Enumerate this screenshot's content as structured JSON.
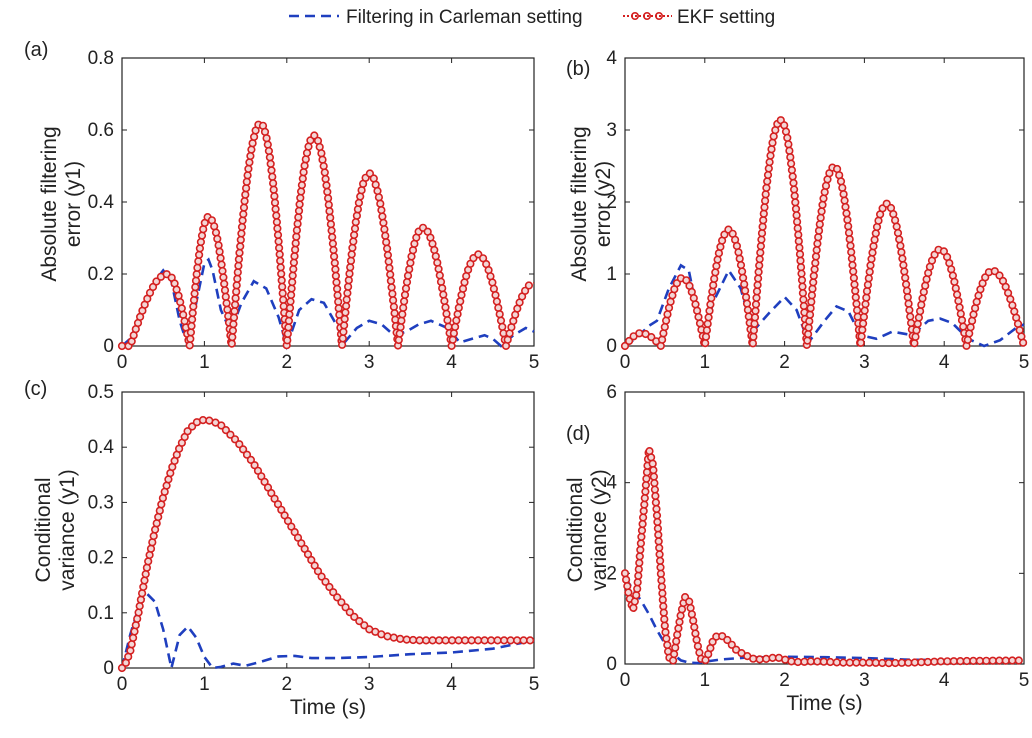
{
  "legend": {
    "position": "top-center",
    "entries": [
      {
        "label": "Filtering in Carleman setting",
        "color": "#1f3fbf",
        "style": "dashed"
      },
      {
        "label": "EKF setting",
        "color": "#d42020",
        "style": "dotted-circle-markers"
      }
    ]
  },
  "chart_data": [
    {
      "panel": "(a)",
      "type": "line",
      "xlabel": "",
      "ylabel": "Absolute filtering error (y1)",
      "xlim": [
        0,
        5
      ],
      "ylim": [
        0,
        0.8
      ],
      "xticks": [
        "0",
        "1",
        "2",
        "3",
        "4",
        "5"
      ],
      "yticks": [
        "0",
        "0.2",
        "0.4",
        "0.6",
        "0.8"
      ],
      "xtick_values": [
        0,
        1,
        2,
        3,
        4,
        5
      ],
      "ytick_values": [
        0,
        0.2,
        0.4,
        0.6,
        0.8
      ],
      "series": [
        {
          "name": "Filtering in Carleman setting",
          "x": [
            0,
            0.1,
            0.2,
            0.3,
            0.4,
            0.5,
            0.6,
            0.7,
            0.8,
            0.9,
            1.0,
            1.05,
            1.1,
            1.2,
            1.32,
            1.45,
            1.6,
            1.75,
            1.9,
            2.0,
            2.15,
            2.3,
            2.45,
            2.6,
            2.7,
            2.85,
            3.0,
            3.15,
            3.3,
            3.45,
            3.6,
            3.75,
            3.95,
            4.1,
            4.25,
            4.4,
            4.5,
            4.6,
            4.75,
            4.9,
            5.0
          ],
          "y": [
            0,
            0.02,
            0.07,
            0.13,
            0.18,
            0.21,
            0.18,
            0.07,
            0.0,
            0.12,
            0.23,
            0.24,
            0.21,
            0.1,
            0.04,
            0.12,
            0.18,
            0.16,
            0.08,
            0.0,
            0.1,
            0.13,
            0.12,
            0.06,
            0.01,
            0.05,
            0.07,
            0.06,
            0.03,
            0.04,
            0.06,
            0.07,
            0.05,
            0.01,
            0.02,
            0.03,
            0.02,
            0.0,
            0.03,
            0.05,
            0.04
          ]
        },
        {
          "name": "EKF setting",
          "peaks": [
            [
              0.55,
              0.2
            ],
            [
              1.05,
              0.36
            ],
            [
              1.68,
              0.62
            ],
            [
              2.33,
              0.585
            ],
            [
              3.0,
              0.48
            ],
            [
              3.65,
              0.33
            ],
            [
              4.32,
              0.255
            ],
            [
              5.0,
              0.175
            ]
          ],
          "zeros": [
            0.0,
            0.82,
            1.33,
            2.0,
            2.67,
            3.35,
            4.0,
            4.66
          ],
          "rise_start": 0.1
        }
      ]
    },
    {
      "panel": "(b)",
      "type": "line",
      "xlabel": "",
      "ylabel": "Absolute filtering error (y2)",
      "xlim": [
        0,
        5
      ],
      "ylim": [
        0,
        4
      ],
      "xticks": [
        "0",
        "1",
        "2",
        "3",
        "4",
        "5"
      ],
      "yticks": [
        "0",
        "1",
        "2",
        "3",
        "4"
      ],
      "xtick_values": [
        0,
        1,
        2,
        3,
        4,
        5
      ],
      "ytick_values": [
        0,
        1,
        2,
        3,
        4
      ],
      "series": [
        {
          "name": "Filtering in Carleman setting",
          "x": [
            0,
            0.15,
            0.3,
            0.4,
            0.55,
            0.7,
            0.8,
            0.9,
            1.0,
            1.1,
            1.3,
            1.45,
            1.6,
            1.8,
            2.0,
            2.15,
            2.3,
            2.5,
            2.65,
            2.8,
            2.95,
            3.15,
            3.35,
            3.6,
            3.8,
            3.95,
            4.1,
            4.3,
            4.5,
            4.7,
            4.9,
            5.0
          ],
          "y": [
            0,
            0.12,
            0.28,
            0.35,
            0.8,
            1.12,
            1.05,
            0.5,
            0.1,
            0.6,
            1.05,
            0.8,
            0.2,
            0.45,
            0.68,
            0.5,
            0.05,
            0.35,
            0.55,
            0.48,
            0.15,
            0.1,
            0.2,
            0.15,
            0.35,
            0.38,
            0.32,
            0.1,
            0.0,
            0.08,
            0.25,
            0.3
          ]
        },
        {
          "name": "EKF setting",
          "peaks": [
            [
              0.2,
              0.18
            ],
            [
              0.72,
              0.95
            ],
            [
              1.3,
              1.62
            ],
            [
              1.95,
              3.15
            ],
            [
              2.62,
              2.5
            ],
            [
              3.28,
              1.98
            ],
            [
              3.95,
              1.35
            ],
            [
              4.6,
              1.05
            ]
          ],
          "zeros": [
            0.0,
            0.45,
            1.0,
            1.6,
            2.28,
            2.95,
            3.62,
            4.28,
            5.0
          ],
          "rise_start": 0.0
        }
      ]
    },
    {
      "panel": "(c)",
      "type": "line",
      "xlabel": "Time (s)",
      "ylabel": "Conditional variance (y1)",
      "xlim": [
        0,
        5
      ],
      "ylim": [
        0,
        0.5
      ],
      "xticks": [
        "0",
        "1",
        "2",
        "3",
        "4",
        "5"
      ],
      "yticks": [
        "0",
        "0.1",
        "0.2",
        "0.3",
        "0.4",
        "0.5"
      ],
      "xtick_values": [
        0,
        1,
        2,
        3,
        4,
        5
      ],
      "ytick_values": [
        0,
        0.1,
        0.2,
        0.3,
        0.4,
        0.5
      ],
      "series": [
        {
          "name": "Filtering in Carleman setting",
          "x": [
            0,
            0.1,
            0.2,
            0.3,
            0.4,
            0.5,
            0.6,
            0.7,
            0.8,
            0.9,
            1.0,
            1.1,
            1.2,
            1.35,
            1.5,
            1.7,
            1.9,
            2.1,
            2.3,
            2.6,
            3.0,
            3.5,
            4.0,
            4.5,
            5.0
          ],
          "y": [
            0,
            0.06,
            0.11,
            0.135,
            0.12,
            0.07,
            0.0,
            0.06,
            0.075,
            0.055,
            0.02,
            0.0,
            0.002,
            0.008,
            0.004,
            0.012,
            0.021,
            0.022,
            0.018,
            0.018,
            0.02,
            0.025,
            0.028,
            0.035,
            0.05
          ]
        },
        {
          "name": "EKF setting",
          "x": [
            0,
            0.05,
            0.1,
            0.2,
            0.3,
            0.4,
            0.5,
            0.6,
            0.7,
            0.8,
            0.9,
            1.0,
            1.1,
            1.2,
            1.4,
            1.6,
            1.8,
            2.0,
            2.2,
            2.4,
            2.6,
            2.8,
            3.0,
            3.2,
            3.4,
            3.6,
            3.8,
            4.0,
            4.5,
            5.0
          ],
          "y": [
            0,
            0.01,
            0.03,
            0.1,
            0.18,
            0.25,
            0.31,
            0.36,
            0.4,
            0.43,
            0.445,
            0.45,
            0.447,
            0.44,
            0.41,
            0.37,
            0.32,
            0.27,
            0.22,
            0.17,
            0.13,
            0.095,
            0.07,
            0.058,
            0.052,
            0.05,
            0.05,
            0.05,
            0.05,
            0.05
          ]
        }
      ]
    },
    {
      "panel": "(d)",
      "type": "line",
      "xlabel": "Time (s)",
      "ylabel": "Conditional variance (y2)",
      "xlim": [
        0,
        5
      ],
      "ylim": [
        0,
        6
      ],
      "xticks": [
        "0",
        "1",
        "2",
        "3",
        "4",
        "5"
      ],
      "yticks": [
        "0",
        "2",
        "4",
        "6"
      ],
      "xtick_values": [
        0,
        1,
        2,
        3,
        4,
        5
      ],
      "ytick_values": [
        0,
        2,
        4,
        6
      ],
      "series": [
        {
          "name": "Filtering in Carleman setting",
          "x": [
            0,
            0.1,
            0.2,
            0.3,
            0.4,
            0.5,
            0.6,
            0.7,
            0.8,
            0.9,
            1.0,
            1.2,
            1.5,
            2.0,
            2.5,
            3.0,
            3.5,
            4.0,
            5.0
          ],
          "y": [
            1.9,
            1.65,
            1.4,
            1.1,
            0.75,
            0.45,
            0.22,
            0.08,
            0.03,
            0.02,
            0.05,
            0.1,
            0.14,
            0.16,
            0.15,
            0.13,
            0.1,
            0.08,
            0.06
          ]
        },
        {
          "name": "EKF setting",
          "x": [
            0,
            0.05,
            0.1,
            0.15,
            0.2,
            0.25,
            0.3,
            0.35,
            0.4,
            0.45,
            0.5,
            0.55,
            0.6,
            0.65,
            0.7,
            0.75,
            0.8,
            0.85,
            0.9,
            0.95,
            1.0,
            1.05,
            1.1,
            1.15,
            1.2,
            1.25,
            1.3,
            1.35,
            1.4,
            1.5,
            1.6,
            1.7,
            1.8,
            1.9,
            2.0,
            2.1,
            2.2,
            2.3,
            2.5,
            2.7,
            3.0,
            3.3,
            3.6,
            4.0,
            4.5,
            5.0
          ],
          "y": [
            2.0,
            1.5,
            1.2,
            1.6,
            2.7,
            3.7,
            4.75,
            4.4,
            3.3,
            2.0,
            0.8,
            0.15,
            0.05,
            0.6,
            1.1,
            1.48,
            1.42,
            1.0,
            0.5,
            0.12,
            0.05,
            0.25,
            0.5,
            0.62,
            0.63,
            0.58,
            0.5,
            0.4,
            0.3,
            0.2,
            0.12,
            0.1,
            0.12,
            0.15,
            0.1,
            0.05,
            0.04,
            0.06,
            0.05,
            0.03,
            0.03,
            0.02,
            0.03,
            0.06,
            0.07,
            0.08
          ]
        }
      ]
    }
  ]
}
